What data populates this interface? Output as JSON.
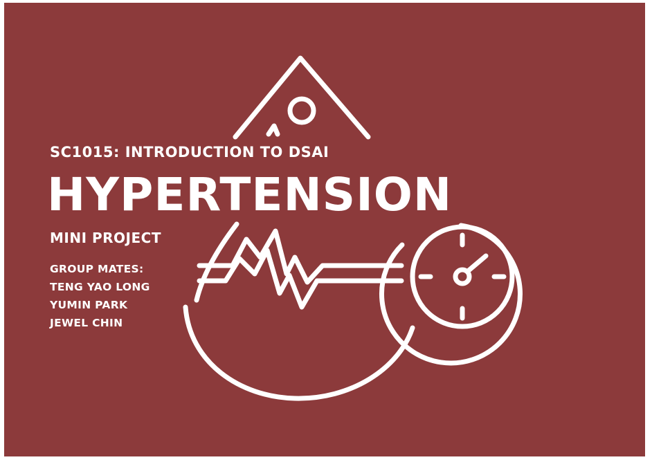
{
  "colors": {
    "background": "#8c3a3b",
    "foreground": "#ffffff"
  },
  "icons": [
    "blood-drop-icon",
    "heartbeat-line-icon",
    "gauge-icon"
  ],
  "slide": {
    "course": "SC1015: INTRODUCTION TO DSAI",
    "title": "HYPERTENSION",
    "subtitle": "MINI PROJECT",
    "group_heading": "GROUP MATES:",
    "members": [
      "TENG YAO LONG",
      "YUMIN PARK",
      "JEWEL CHIN"
    ]
  }
}
